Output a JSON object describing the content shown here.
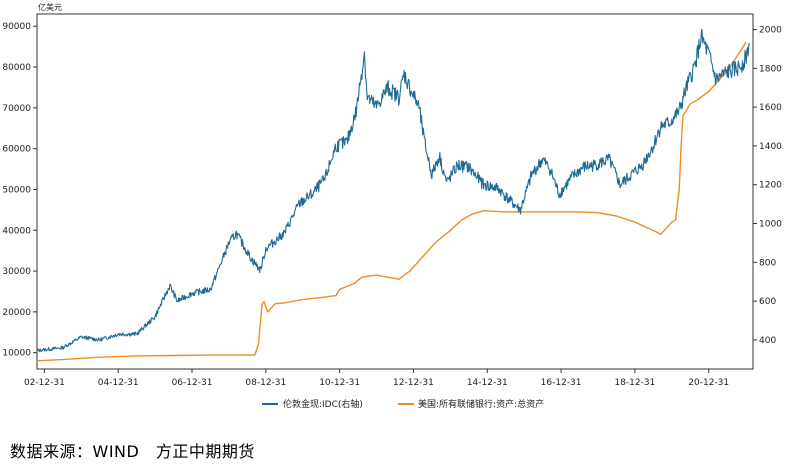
{
  "chart_data": {
    "type": "line",
    "unit_label": "亿美元",
    "x_ticks": [
      "02-12-31",
      "04-12-31",
      "06-12-31",
      "08-12-31",
      "10-12-31",
      "12-12-31",
      "14-12-31",
      "16-12-31",
      "18-12-31",
      "20-12-31"
    ],
    "x_range": [
      2002.8,
      2022.2
    ],
    "left_axis": {
      "ticks": [
        10000,
        20000,
        30000,
        40000,
        50000,
        60000,
        70000,
        80000,
        90000
      ],
      "range": [
        6000,
        93000
      ]
    },
    "right_axis": {
      "ticks": [
        400,
        600,
        800,
        1000,
        1200,
        1400,
        1600,
        1800,
        2000
      ],
      "range": [
        250,
        2080
      ]
    },
    "grid": false,
    "legend_position": "bottom",
    "series": [
      {
        "name": "美国:所有联储银行:资产:总资产",
        "axis": "left",
        "color": "#F08C23",
        "x": [
          2002.8,
          2003.5,
          2004.5,
          2005.5,
          2006.5,
          2007.5,
          2008.7,
          2008.8,
          2008.9,
          2008.95,
          2009.05,
          2009.25,
          2009.5,
          2010.0,
          2010.5,
          2010.9,
          2011.0,
          2011.4,
          2011.6,
          2012.0,
          2012.3,
          2012.6,
          2012.9,
          2013.3,
          2013.6,
          2014.0,
          2014.3,
          2014.6,
          2014.9,
          2015.5,
          2016.5,
          2017.5,
          2018.0,
          2018.5,
          2019.0,
          2019.6,
          2019.7,
          2019.9,
          2020.0,
          2020.1,
          2020.2,
          2020.25,
          2020.3,
          2020.5,
          2020.7,
          2021.0,
          2021.5,
          2021.9,
          2022.0
        ],
        "y": [
          8000,
          8300,
          8900,
          9200,
          9300,
          9400,
          9400,
          12000,
          22000,
          22500,
          20000,
          22000,
          22200,
          23000,
          23500,
          24000,
          25500,
          27000,
          28500,
          29000,
          28500,
          28000,
          30000,
          34000,
          37000,
          40000,
          42500,
          44000,
          44800,
          44500,
          44500,
          44500,
          44300,
          43500,
          42000,
          39500,
          39000,
          41000,
          42000,
          42500,
          50000,
          60000,
          68000,
          71000,
          72000,
          74000,
          79000,
          84500,
          86000
        ]
      },
      {
        "name": "伦敦金现:IDC(右轴)",
        "axis": "right",
        "color": "#1F6A95",
        "x": [
          2002.8,
          2003.5,
          2004.0,
          2004.5,
          2005.0,
          2005.5,
          2006.0,
          2006.4,
          2006.6,
          2007.0,
          2007.5,
          2008.0,
          2008.2,
          2008.6,
          2008.85,
          2009.0,
          2009.5,
          2009.9,
          2010.3,
          2010.6,
          2010.9,
          2011.2,
          2011.45,
          2011.67,
          2011.75,
          2011.9,
          2012.0,
          2012.3,
          2012.6,
          2012.75,
          2012.9,
          2013.15,
          2013.3,
          2013.5,
          2013.7,
          2013.9,
          2014.2,
          2014.5,
          2014.9,
          2015.3,
          2015.6,
          2015.9,
          2016.2,
          2016.5,
          2016.7,
          2016.95,
          2017.3,
          2017.6,
          2017.9,
          2018.3,
          2018.6,
          2018.9,
          2019.2,
          2019.5,
          2019.7,
          2019.95,
          2020.2,
          2020.4,
          2020.6,
          2020.8,
          2021.0,
          2021.2,
          2021.5,
          2021.8,
          2022.0,
          2022.1
        ],
        "y": [
          345,
          360,
          415,
          400,
          430,
          430,
          520,
          680,
          600,
          640,
          660,
          900,
          950,
          820,
          760,
          870,
          950,
          1100,
          1160,
          1230,
          1400,
          1420,
          1580,
          1880,
          1650,
          1620,
          1600,
          1700,
          1650,
          1770,
          1700,
          1600,
          1420,
          1250,
          1350,
          1210,
          1300,
          1290,
          1200,
          1180,
          1120,
          1070,
          1250,
          1330,
          1280,
          1150,
          1240,
          1290,
          1300,
          1330,
          1200,
          1250,
          1300,
          1400,
          1500,
          1520,
          1580,
          1700,
          1800,
          1960,
          1870,
          1740,
          1780,
          1800,
          1850,
          1930
        ]
      }
    ]
  },
  "source_note": "数据来源：WIND　方正中期期货"
}
